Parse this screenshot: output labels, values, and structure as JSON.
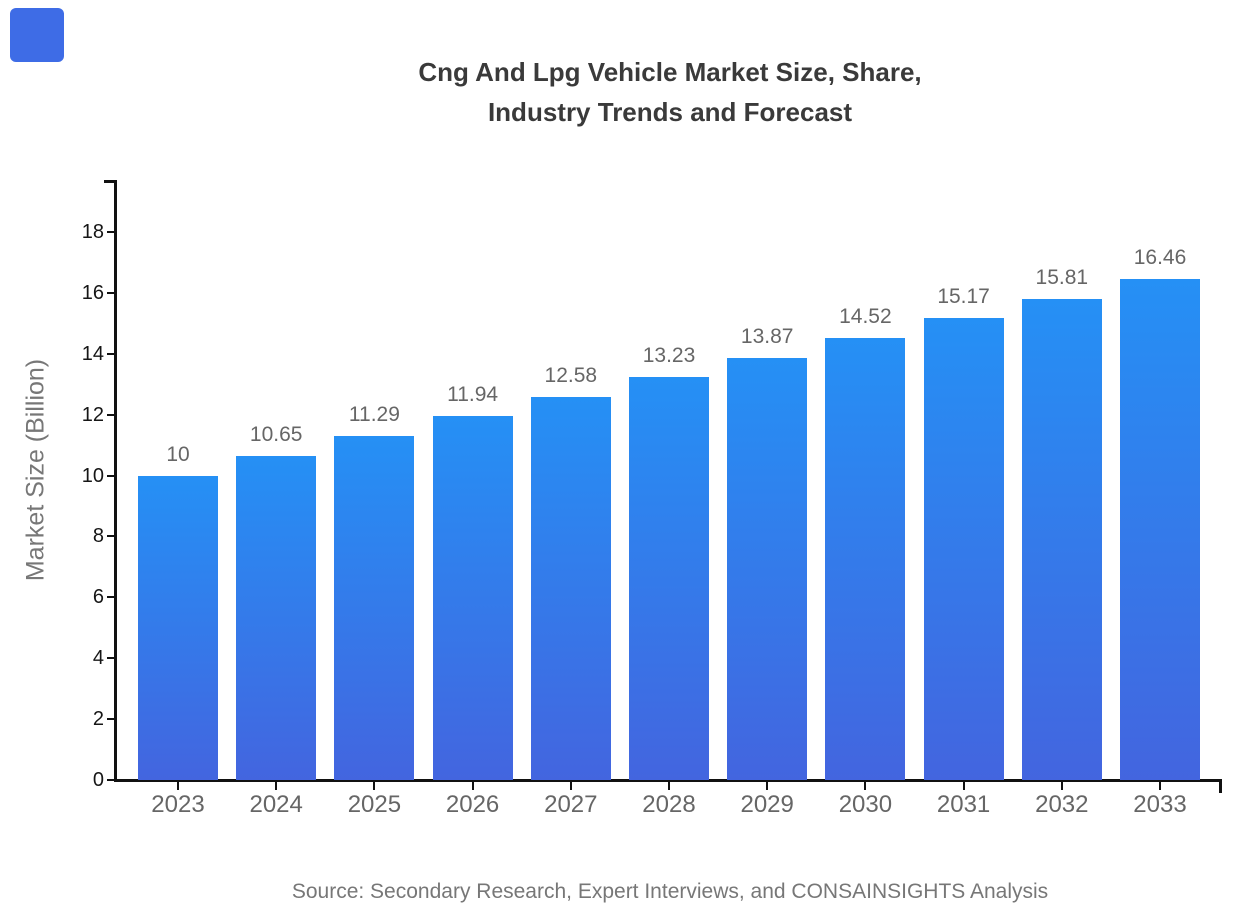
{
  "logo": {
    "color": "#3e6ce6"
  },
  "title": {
    "line1": "Cng And Lpg Vehicle Market Size, Share,",
    "line2": "Industry Trends and Forecast"
  },
  "footer": {
    "source": "Source: Secondary Research, Expert Interviews, and CONSAINSIGHTS Analysis"
  },
  "chart_data": {
    "type": "bar",
    "title": "Cng And Lpg Vehicle Market Size, Share, Industry Trends and Forecast",
    "categories": [
      "2023",
      "2024",
      "2025",
      "2026",
      "2027",
      "2028",
      "2029",
      "2030",
      "2031",
      "2032",
      "2033"
    ],
    "values": [
      10,
      10.65,
      11.29,
      11.94,
      12.58,
      13.23,
      13.87,
      14.52,
      15.17,
      15.81,
      16.46
    ],
    "value_labels": [
      "10",
      "10.65",
      "11.29",
      "11.94",
      "12.58",
      "13.23",
      "13.87",
      "14.52",
      "15.17",
      "15.81",
      "16.46"
    ],
    "xlabel": "",
    "ylabel": "Market Size (Billion)",
    "ylim": [
      0,
      19.7
    ],
    "yticks": [
      0,
      2,
      4,
      6,
      8,
      10,
      12,
      14,
      16,
      18
    ],
    "grid": false,
    "legend": false,
    "bar_color_top": "#2590f5",
    "bar_color_bottom": "#4365df"
  }
}
